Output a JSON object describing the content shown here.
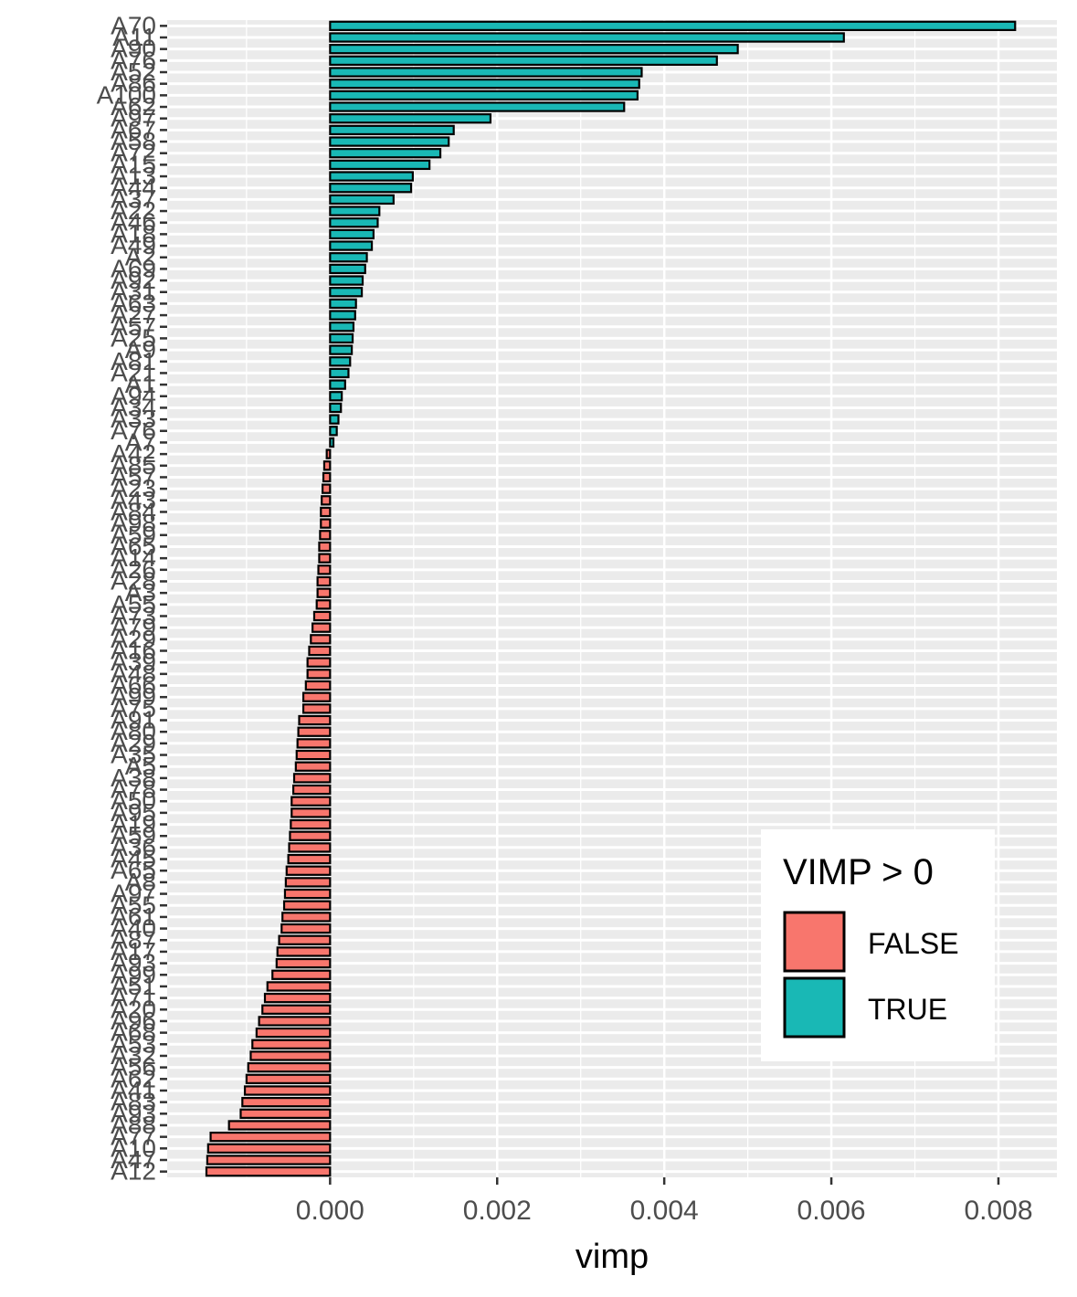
{
  "chart_data": {
    "type": "bar",
    "orientation": "horizontal",
    "xlabel": "vimp",
    "ylabel": "",
    "xlim": [
      -0.00195,
      0.0087
    ],
    "x_ticks": [
      0,
      0.002,
      0.004,
      0.006,
      0.008
    ],
    "x_tick_labels": [
      "0.000",
      "0.002",
      "0.004",
      "0.006",
      "0.008"
    ],
    "grid": true,
    "legend": {
      "title": "VIMP > 0",
      "position": "bottom-right",
      "entries": [
        {
          "label": "FALSE",
          "color": "#f8766d"
        },
        {
          "label": "TRUE",
          "color": "#19b8b5"
        }
      ]
    },
    "colors": {
      "true": "#19b8b5",
      "false": "#f8766d",
      "panel": "#ebebeb",
      "grid": "#ffffff",
      "outline": "#000000"
    },
    "categories": [
      "A70",
      "A11",
      "A90",
      "A76",
      "A52",
      "A86",
      "A100",
      "A62",
      "A97",
      "A67",
      "A58",
      "A72",
      "A15",
      "A13",
      "A44",
      "A37",
      "A22",
      "A46",
      "A18",
      "A49",
      "A2",
      "A69",
      "A92",
      "A31",
      "A63",
      "A27",
      "A57",
      "A25",
      "A9",
      "A81",
      "A21",
      "A1",
      "A94",
      "A34",
      "A33",
      "A76b",
      "A7",
      "A42",
      "A85",
      "A57b",
      "A23",
      "A43",
      "A84",
      "A98",
      "A59",
      "A65",
      "A14",
      "A26",
      "A28",
      "A3",
      "A55",
      "A73",
      "A79",
      "A29",
      "A16",
      "A39",
      "A48",
      "A66",
      "A99",
      "A75",
      "A91",
      "A80",
      "A29b",
      "A35",
      "A5",
      "A38",
      "A78",
      "A50",
      "A95",
      "A19",
      "A59b",
      "A36",
      "A45",
      "A65b",
      "A8",
      "A97b",
      "A55b",
      "A61",
      "A40",
      "A87",
      "A17",
      "A93",
      "A99b",
      "A51",
      "A71",
      "A20",
      "A96",
      "A68",
      "A53",
      "A32",
      "A56",
      "A62b",
      "A41",
      "A83",
      "A93b",
      "A88",
      "A77",
      "A10",
      "A47",
      "A12"
    ],
    "category_labels": [
      "A70",
      "A11",
      "A90",
      "A76",
      "A52",
      "A86",
      "A100",
      "A62",
      "A97",
      "A67",
      "A58",
      "A72",
      "A15",
      "A13",
      "A44",
      "A37",
      "A22",
      "A46",
      "A18",
      "A49",
      "A2",
      "A69",
      "A92",
      "A31",
      "A63",
      "A27",
      "A57",
      "A25",
      "A9",
      "A81",
      "A21",
      "A1",
      "A94",
      "A34",
      "A33",
      "A76",
      "A7",
      "A42",
      "A85",
      "A57",
      "A23",
      "A43",
      "A84",
      "A98",
      "A59",
      "A65",
      "A14",
      "A26",
      "A28",
      "A3",
      "A55",
      "A73",
      "A79",
      "A29",
      "A16",
      "A39",
      "A48",
      "A66",
      "A99",
      "A75",
      "A91",
      "A80",
      "A29",
      "A35",
      "A5",
      "A38",
      "A78",
      "A50",
      "A95",
      "A19",
      "A59",
      "A36",
      "A45",
      "A65",
      "A8",
      "A97",
      "A55",
      "A61",
      "A40",
      "A87",
      "A17",
      "A93",
      "A99",
      "A51",
      "A71",
      "A20",
      "A96",
      "A68",
      "A53",
      "A32",
      "A56",
      "A62",
      "A41",
      "A83",
      "A93",
      "A88",
      "A77",
      "A10",
      "A47",
      "A12"
    ],
    "values": [
      0.0082,
      0.00615,
      0.00488,
      0.00463,
      0.00373,
      0.0037,
      0.00368,
      0.00352,
      0.00192,
      0.00148,
      0.00142,
      0.00132,
      0.00119,
      0.00099,
      0.00097,
      0.00076,
      0.00059,
      0.00057,
      0.00052,
      0.0005,
      0.00044,
      0.00042,
      0.00039,
      0.00038,
      0.00031,
      0.0003,
      0.00028,
      0.00027,
      0.00026,
      0.00024,
      0.00022,
      0.00018,
      0.00014,
      0.00013,
      0.0001,
      8e-05,
      4e-05,
      -4e-05,
      -7e-05,
      -8e-05,
      -9e-05,
      -0.0001,
      -0.00011,
      -0.00011,
      -0.00012,
      -0.00013,
      -0.00013,
      -0.00014,
      -0.00015,
      -0.00015,
      -0.00016,
      -0.00019,
      -0.00021,
      -0.00023,
      -0.00025,
      -0.00027,
      -0.00027,
      -0.00029,
      -0.00032,
      -0.00032,
      -0.00037,
      -0.00038,
      -0.00039,
      -0.0004,
      -0.00041,
      -0.00043,
      -0.00044,
      -0.00046,
      -0.00046,
      -0.00047,
      -0.00048,
      -0.00049,
      -0.0005,
      -0.00052,
      -0.00053,
      -0.00054,
      -0.00055,
      -0.00057,
      -0.00058,
      -0.00061,
      -0.00063,
      -0.00064,
      -0.00069,
      -0.00075,
      -0.00078,
      -0.00081,
      -0.00085,
      -0.00088,
      -0.00093,
      -0.00095,
      -0.00098,
      -0.001,
      -0.00102,
      -0.00105,
      -0.00107,
      -0.00121,
      -0.00143,
      -0.00146,
      -0.00147,
      -0.00148
    ]
  }
}
